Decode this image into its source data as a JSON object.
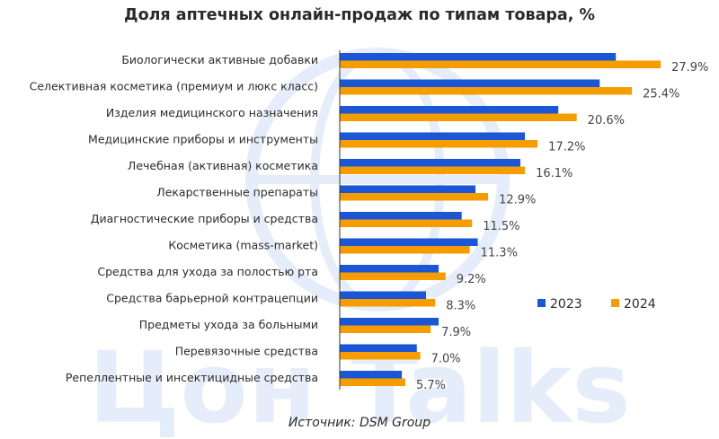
{
  "chart_data": {
    "type": "bar",
    "orientation": "horizontal",
    "title": "Доля аптечных онлайн-продаж по типам товара, %",
    "source": "Источник: DSM Group",
    "categories": [
      "Биологически активные добавки",
      "Селективная косметика (премиум и люкс класс)",
      "Изделия медицинского назначения",
      "Медицинские приборы и инструменты",
      "Лечебная (активная) косметика",
      "Лекарственные препараты",
      "Диагностические приборы и средства",
      "Косметика (mass-market)",
      "Средства для ухода за полостью рта",
      "Средства барьерной контрацепции",
      "Предметы ухода за больными",
      "Перевязочные средства",
      "Репеллентные и инсектицидные средства"
    ],
    "series": [
      {
        "name": "2023",
        "color": "#1a56d6",
        "values": [
          24.0,
          22.6,
          19.0,
          16.1,
          15.7,
          11.8,
          10.6,
          12.0,
          8.6,
          7.5,
          8.6,
          6.7,
          5.4
        ]
      },
      {
        "name": "2024",
        "color": "#f59c00",
        "values": [
          27.9,
          25.4,
          20.6,
          17.2,
          16.1,
          12.9,
          11.5,
          11.3,
          9.2,
          8.3,
          7.9,
          7.0,
          5.7
        ],
        "labels": [
          "27.9%",
          "25.4%",
          "20.6%",
          "17.2%",
          "16.1%",
          "12.9%",
          "11.5%",
          "11.3%",
          "9.2%",
          "8.3%",
          "7.9%",
          "7.0%",
          "5.7%"
        ]
      }
    ],
    "xlim": [
      0,
      30
    ],
    "legend_position": "right",
    "grid": false,
    "watermark": "Цон Talks"
  }
}
